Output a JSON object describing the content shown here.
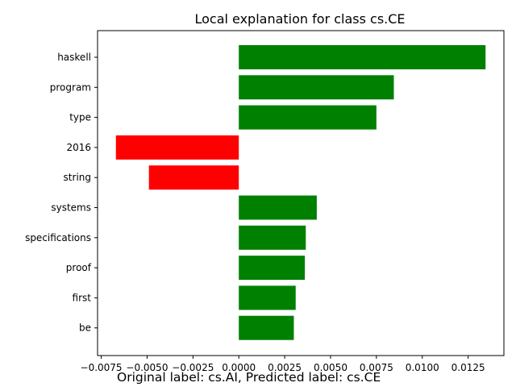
{
  "chart_data": {
    "type": "bar",
    "orientation": "horizontal",
    "title": "Local explanation for class cs.CE",
    "xlabel": "",
    "ylabel": "",
    "categories": [
      "haskell",
      "program",
      "type",
      "2016",
      "string",
      "systems",
      "specifications",
      "proof",
      "first",
      "be"
    ],
    "values": [
      0.01345,
      0.00845,
      0.0075,
      -0.0067,
      -0.0049,
      0.00425,
      0.00365,
      0.0036,
      0.0031,
      0.003
    ],
    "xlim": [
      -0.0077,
      0.01445
    ],
    "xticks": [
      -0.0075,
      -0.005,
      -0.0025,
      0.0,
      0.0025,
      0.005,
      0.0075,
      0.01,
      0.0125
    ],
    "xtick_labels": [
      "−0.0075",
      "−0.0050",
      "−0.0025",
      "0.0000",
      "0.0025",
      "0.0050",
      "0.0075",
      "0.0100",
      "0.0125"
    ],
    "positive_color": "#008000",
    "negative_color": "#ff0000",
    "grid": false
  },
  "caption": "Original label: cs.AI, Predicted label: cs.CE"
}
